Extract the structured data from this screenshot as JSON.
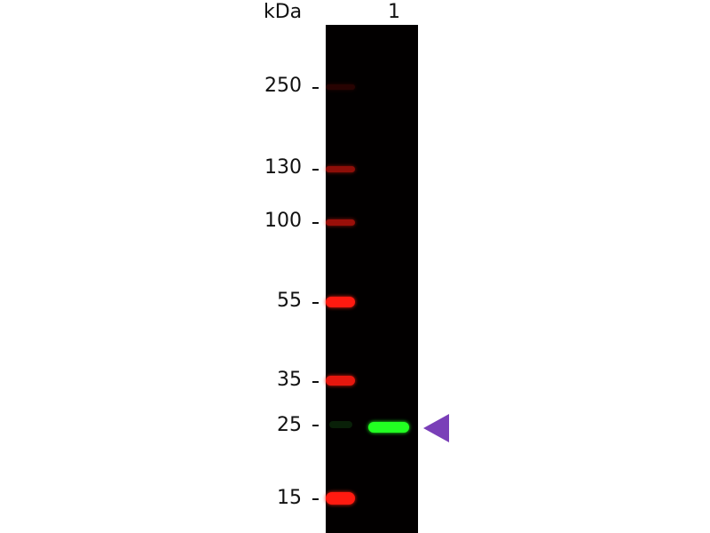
{
  "axis_unit_label": "kDa",
  "lane_labels": [
    "1"
  ],
  "markers": [
    {
      "label": "250",
      "ladder_intensity": 0.15
    },
    {
      "label": "130",
      "ladder_intensity": 0.55
    },
    {
      "label": "100",
      "ladder_intensity": 0.6
    },
    {
      "label": "55",
      "ladder_intensity": 1.0
    },
    {
      "label": "35",
      "ladder_intensity": 0.9
    },
    {
      "label": "25",
      "ladder_intensity": 0.1
    },
    {
      "label": "15",
      "ladder_intensity": 1.0
    }
  ],
  "colors": {
    "ladder": "#ff1a10",
    "target_band": "#22ff22",
    "arrow": "#7a3fb8",
    "membrane": "#020000"
  }
}
